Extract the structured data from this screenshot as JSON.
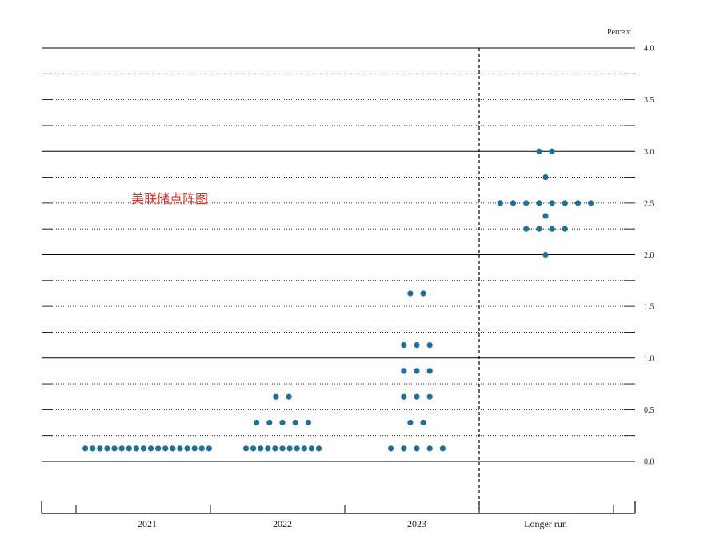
{
  "chart_data": {
    "type": "scatter",
    "title": "",
    "overlay_text": "美联储点阵图",
    "unit_label": "Percent",
    "ylim": [
      -0.375,
      4.0
    ],
    "y_ticks": [
      "0.0",
      "0.5",
      "1.0",
      "1.5",
      "2.0",
      "2.5",
      "3.0",
      "3.5",
      "4.0"
    ],
    "y_tick_values": [
      0.0,
      0.5,
      1.0,
      1.5,
      2.0,
      2.5,
      3.0,
      3.5,
      4.0
    ],
    "categories": [
      "2021",
      "2022",
      "2023",
      "Longer run"
    ],
    "dot_color": "#1f6f99",
    "points": [
      {
        "category": "2021",
        "value": 0.125,
        "count": 18
      },
      {
        "category": "2022",
        "value": 0.625,
        "count": 2
      },
      {
        "category": "2022",
        "value": 0.375,
        "count": 5
      },
      {
        "category": "2022",
        "value": 0.125,
        "count": 11
      },
      {
        "category": "2023",
        "value": 1.625,
        "count": 2
      },
      {
        "category": "2023",
        "value": 1.125,
        "count": 3
      },
      {
        "category": "2023",
        "value": 0.875,
        "count": 3
      },
      {
        "category": "2023",
        "value": 0.625,
        "count": 3
      },
      {
        "category": "2023",
        "value": 0.375,
        "count": 2
      },
      {
        "category": "2023",
        "value": 0.125,
        "count": 5
      },
      {
        "category": "Longer run",
        "value": 3.0,
        "count": 2
      },
      {
        "category": "Longer run",
        "value": 2.75,
        "count": 1
      },
      {
        "category": "Longer run",
        "value": 2.5,
        "count": 8
      },
      {
        "category": "Longer run",
        "value": 2.375,
        "count": 1
      },
      {
        "category": "Longer run",
        "value": 2.25,
        "count": 4
      },
      {
        "category": "Longer run",
        "value": 2.0,
        "count": 1
      }
    ]
  }
}
